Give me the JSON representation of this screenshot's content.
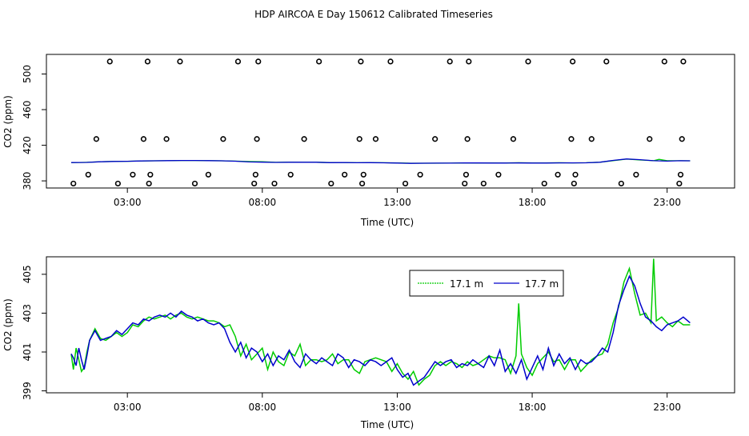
{
  "title": "HDP AIRCOA E  Day 150612  Calibrated Timeseries",
  "colors": {
    "green": "#00cc00",
    "blue": "#0000cc",
    "black": "#000000"
  },
  "chart_data": [
    {
      "type": "scatter",
      "panel": "top",
      "xlabel": "Time (UTC)",
      "ylabel": "CO2 (ppm)",
      "xlim": [
        0,
        25.5
      ],
      "ylim": [
        372,
        522
      ],
      "x_ticks": [
        3,
        8,
        13,
        18,
        23
      ],
      "x_tick_labels": [
        "03:00",
        "08:00",
        "13:00",
        "18:00",
        "23:00"
      ],
      "y_ticks": [
        380,
        420,
        460,
        500
      ],
      "y_tick_labels": [
        "380",
        "420",
        "460",
        "500"
      ],
      "series": [
        {
          "name": "17.1 m",
          "color": "#00cc00",
          "style": "line",
          "x": [
            0.92,
            1.5,
            2.0,
            2.5,
            3.0,
            3.5,
            4.0,
            4.5,
            5.0,
            5.5,
            6.0,
            6.5,
            7.0,
            7.5,
            8.0,
            8.5,
            9.0,
            9.5,
            10.0,
            10.5,
            11.0,
            11.5,
            12.0,
            12.5,
            13.0,
            13.5,
            14.0,
            14.5,
            15.0,
            15.5,
            16.0,
            16.5,
            17.0,
            17.5,
            18.0,
            18.5,
            19.0,
            19.5,
            20.0,
            20.5,
            21.0,
            21.5,
            22.0,
            22.5,
            22.7,
            23.0,
            23.5,
            23.85
          ],
          "y": [
            400.4,
            400.8,
            401.5,
            401.9,
            402.0,
            402.4,
            402.5,
            402.6,
            402.9,
            402.9,
            402.7,
            402.5,
            402.2,
            401.7,
            401.5,
            400.8,
            401.0,
            400.9,
            400.9,
            400.6,
            400.6,
            400.4,
            400.5,
            400.4,
            400.1,
            399.8,
            399.8,
            399.8,
            399.9,
            400.1,
            400.0,
            400.1,
            400.0,
            400.4,
            400.1,
            400.1,
            400.4,
            400.2,
            400.4,
            400.9,
            402.7,
            404.4,
            403.4,
            402.6,
            404.2,
            402.6,
            402.6,
            402.5
          ]
        },
        {
          "name": "17.7 m",
          "color": "#0000cc",
          "style": "line",
          "x": [
            0.92,
            1.5,
            2.0,
            2.5,
            3.0,
            3.5,
            4.0,
            4.5,
            5.0,
            5.5,
            6.0,
            6.5,
            7.0,
            7.5,
            8.0,
            8.5,
            9.0,
            9.5,
            10.0,
            10.5,
            11.0,
            11.5,
            12.0,
            12.5,
            13.0,
            13.5,
            14.0,
            14.5,
            15.0,
            15.5,
            16.0,
            16.5,
            17.0,
            17.5,
            18.0,
            18.5,
            19.0,
            19.5,
            20.0,
            20.5,
            21.0,
            21.5,
            22.0,
            22.5,
            23.0,
            23.5,
            23.85
          ],
          "y": [
            400.6,
            400.7,
            401.5,
            401.8,
            402.0,
            402.4,
            402.5,
            402.7,
            402.9,
            402.9,
            402.7,
            402.5,
            402.1,
            401.3,
            401.0,
            400.7,
            400.9,
            400.9,
            400.9,
            400.5,
            400.6,
            400.4,
            400.5,
            400.3,
            400.0,
            399.7,
            399.8,
            399.9,
            399.9,
            400.2,
            400.1,
            400.0,
            400.0,
            400.1,
            400.0,
            400.0,
            400.2,
            400.2,
            400.3,
            400.9,
            403.0,
            404.6,
            403.8,
            402.6,
            402.2,
            402.6,
            402.5
          ]
        },
        {
          "name": "",
          "color": "#000000",
          "style": "open-circles",
          "x": [
            1.0,
            1.55,
            1.85,
            2.35,
            2.65,
            3.2,
            3.6,
            3.75,
            3.8,
            3.85,
            4.45,
            4.95,
            5.5,
            6.0,
            6.55,
            7.1,
            7.7,
            7.75,
            7.8,
            7.85,
            8.45,
            9.05,
            9.55,
            10.1,
            10.55,
            11.05,
            11.6,
            11.65,
            11.7,
            11.75,
            12.2,
            12.75,
            13.3,
            13.85,
            14.4,
            14.95,
            15.5,
            15.55,
            15.6,
            15.65,
            16.2,
            16.75,
            17.3,
            17.85,
            18.45,
            18.95,
            19.45,
            19.5,
            19.55,
            19.6,
            20.2,
            20.75,
            21.3,
            21.85,
            22.35,
            22.9,
            23.45,
            23.5,
            23.55,
            23.6
          ],
          "y": [
            377,
            387,
            427,
            514,
            377,
            387,
            427,
            514,
            377,
            387,
            427,
            514,
            377,
            387,
            427,
            514,
            377,
            387,
            427,
            514,
            377,
            387,
            427,
            514,
            377,
            387,
            427,
            514,
            377,
            387,
            427,
            514,
            377,
            387,
            427,
            514,
            377,
            387,
            427,
            514,
            377,
            387,
            427,
            514,
            377,
            387,
            427,
            514,
            377,
            387,
            427,
            514,
            377,
            387,
            427,
            514,
            377,
            387,
            427,
            514
          ]
        }
      ]
    },
    {
      "type": "line",
      "panel": "bottom",
      "xlabel": "Time (UTC)",
      "ylabel": "CO2 (ppm)",
      "xlim": [
        0,
        25.5
      ],
      "ylim": [
        398.9,
        405.9
      ],
      "x_ticks": [
        3,
        8,
        13,
        18,
        23
      ],
      "x_tick_labels": [
        "03:00",
        "08:00",
        "13:00",
        "18:00",
        "23:00"
      ],
      "y_ticks": [
        399,
        401,
        403,
        405
      ],
      "y_tick_labels": [
        "399",
        "401",
        "403",
        "405"
      ],
      "legend": "top-center",
      "series": [
        {
          "name": "17.1 m",
          "color": "#00cc00",
          "x": [
            0.92,
            1.0,
            1.1,
            1.2,
            1.3,
            1.4,
            1.5,
            1.6,
            1.8,
            2.0,
            2.2,
            2.4,
            2.6,
            2.8,
            3.0,
            3.2,
            3.4,
            3.6,
            3.8,
            4.0,
            4.2,
            4.4,
            4.6,
            4.8,
            5.0,
            5.2,
            5.4,
            5.6,
            5.8,
            6.0,
            6.2,
            6.4,
            6.6,
            6.8,
            7.0,
            7.2,
            7.4,
            7.6,
            7.8,
            8.0,
            8.2,
            8.4,
            8.6,
            8.8,
            9.0,
            9.2,
            9.4,
            9.6,
            9.8,
            10.0,
            10.2,
            10.4,
            10.6,
            10.8,
            11.0,
            11.2,
            11.4,
            11.6,
            11.8,
            12.0,
            12.2,
            12.4,
            12.6,
            12.8,
            13.0,
            13.2,
            13.4,
            13.6,
            13.8,
            14.0,
            14.2,
            14.4,
            14.6,
            14.8,
            15.0,
            15.2,
            15.4,
            15.6,
            15.8,
            16.0,
            16.2,
            16.4,
            16.6,
            16.8,
            17.0,
            17.2,
            17.4,
            17.5,
            17.6,
            17.8,
            18.0,
            18.2,
            18.4,
            18.6,
            18.8,
            19.0,
            19.2,
            19.4,
            19.6,
            19.8,
            20.0,
            20.2,
            20.4,
            20.6,
            20.8,
            21.0,
            21.2,
            21.4,
            21.6,
            21.8,
            22.0,
            22.2,
            22.4,
            22.5,
            22.6,
            22.8,
            23.0,
            23.2,
            23.4,
            23.6,
            23.85
          ],
          "y": [
            400.9,
            400.1,
            401.2,
            400.6,
            400.0,
            400.2,
            401.0,
            401.6,
            402.2,
            401.7,
            401.6,
            401.8,
            402.0,
            401.8,
            402.0,
            402.4,
            402.3,
            402.6,
            402.8,
            402.7,
            402.8,
            402.9,
            402.7,
            402.9,
            403.0,
            402.8,
            402.7,
            402.8,
            402.7,
            402.6,
            402.6,
            402.5,
            402.3,
            402.4,
            401.8,
            400.8,
            401.4,
            400.6,
            400.9,
            401.2,
            400.1,
            401.0,
            400.5,
            400.3,
            401.0,
            400.8,
            401.4,
            400.3,
            400.6,
            400.6,
            400.5,
            400.6,
            400.9,
            400.4,
            400.6,
            400.6,
            400.1,
            399.9,
            400.5,
            400.6,
            400.7,
            400.6,
            400.5,
            400.0,
            400.4,
            399.9,
            399.6,
            400.0,
            399.3,
            399.6,
            399.8,
            400.3,
            400.5,
            400.3,
            400.5,
            400.4,
            400.2,
            400.5,
            400.3,
            400.4,
            400.6,
            400.8,
            400.7,
            400.7,
            400.6,
            399.9,
            400.8,
            403.5,
            400.9,
            400.2,
            399.8,
            400.4,
            400.7,
            401.0,
            400.5,
            400.6,
            400.1,
            400.6,
            400.6,
            400.0,
            400.3,
            400.6,
            400.8,
            400.9,
            401.4,
            402.5,
            403.3,
            404.6,
            405.3,
            404.0,
            402.9,
            403.0,
            402.5,
            405.8,
            402.6,
            402.8,
            402.5,
            402.3,
            402.6,
            402.4,
            402.4
          ]
        },
        {
          "name": "17.7 m",
          "color": "#0000cc",
          "x": [
            0.92,
            1.0,
            1.1,
            1.2,
            1.3,
            1.4,
            1.5,
            1.6,
            1.8,
            2.0,
            2.2,
            2.4,
            2.6,
            2.8,
            3.0,
            3.2,
            3.4,
            3.6,
            3.8,
            4.0,
            4.2,
            4.4,
            4.6,
            4.8,
            5.0,
            5.2,
            5.4,
            5.6,
            5.8,
            6.0,
            6.2,
            6.4,
            6.6,
            6.8,
            7.0,
            7.2,
            7.4,
            7.6,
            7.8,
            8.0,
            8.2,
            8.4,
            8.6,
            8.8,
            9.0,
            9.2,
            9.4,
            9.6,
            9.8,
            10.0,
            10.2,
            10.4,
            10.6,
            10.8,
            11.0,
            11.2,
            11.4,
            11.6,
            11.8,
            12.0,
            12.2,
            12.4,
            12.6,
            12.8,
            13.0,
            13.2,
            13.4,
            13.6,
            13.8,
            14.0,
            14.2,
            14.4,
            14.6,
            14.8,
            15.0,
            15.2,
            15.4,
            15.6,
            15.8,
            16.0,
            16.2,
            16.4,
            16.6,
            16.8,
            17.0,
            17.2,
            17.4,
            17.6,
            17.8,
            18.0,
            18.2,
            18.4,
            18.6,
            18.8,
            19.0,
            19.2,
            19.4,
            19.6,
            19.8,
            20.0,
            20.2,
            20.4,
            20.6,
            20.8,
            21.0,
            21.2,
            21.4,
            21.6,
            21.8,
            22.0,
            22.2,
            22.4,
            22.6,
            22.8,
            23.0,
            23.2,
            23.4,
            23.6,
            23.85
          ],
          "y": [
            400.9,
            400.7,
            400.3,
            401.2,
            400.6,
            400.1,
            400.8,
            401.6,
            402.1,
            401.6,
            401.7,
            401.8,
            402.1,
            401.9,
            402.2,
            402.5,
            402.4,
            402.7,
            402.6,
            402.8,
            402.9,
            402.8,
            403.0,
            402.8,
            403.1,
            402.9,
            402.8,
            402.6,
            402.7,
            402.5,
            402.4,
            402.5,
            402.2,
            401.5,
            401.0,
            401.5,
            400.7,
            401.2,
            401.0,
            400.5,
            400.9,
            400.3,
            400.8,
            400.6,
            401.1,
            400.5,
            400.2,
            400.9,
            400.6,
            400.4,
            400.7,
            400.5,
            400.3,
            400.9,
            400.7,
            400.2,
            400.6,
            400.5,
            400.3,
            400.6,
            400.5,
            400.3,
            400.5,
            400.7,
            400.1,
            399.7,
            399.9,
            399.3,
            399.5,
            399.7,
            400.1,
            400.5,
            400.3,
            400.5,
            400.6,
            400.2,
            400.4,
            400.3,
            400.6,
            400.4,
            400.2,
            400.8,
            400.3,
            401.1,
            400.0,
            400.4,
            399.9,
            400.6,
            399.6,
            400.2,
            400.8,
            400.1,
            401.2,
            400.3,
            400.9,
            400.4,
            400.7,
            400.1,
            400.6,
            400.4,
            400.5,
            400.8,
            401.2,
            401.0,
            402.0,
            403.4,
            404.2,
            404.9,
            404.4,
            403.5,
            402.8,
            402.6,
            402.3,
            402.1,
            402.4,
            402.5,
            402.6,
            402.8,
            402.5
          ]
        }
      ]
    }
  ]
}
